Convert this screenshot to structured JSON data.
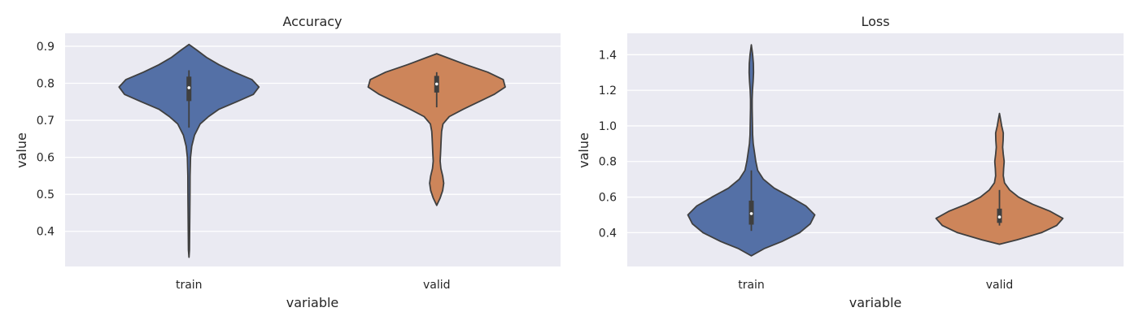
{
  "colors": {
    "background": "#eaeaf2",
    "grid": "#ffffff",
    "outline": "#3f3f3f",
    "train": "#5470a6",
    "valid": "#cd855a"
  },
  "chart_data": [
    {
      "type": "violin",
      "title": "Accuracy",
      "xlabel": "variable",
      "ylabel": "value",
      "ylim": [
        0.305,
        0.935
      ],
      "yticks": [
        "0.4",
        "0.5",
        "0.6",
        "0.7",
        "0.8",
        "0.9"
      ],
      "ytick_values": [
        0.4,
        0.5,
        0.6,
        0.7,
        0.8,
        0.9
      ],
      "grid": true,
      "categories": [
        "train",
        "valid"
      ],
      "violins": [
        {
          "category": "train",
          "color_key": "train",
          "density_y": [
            0.33,
            0.35,
            0.4,
            0.45,
            0.5,
            0.55,
            0.6,
            0.63,
            0.66,
            0.69,
            0.71,
            0.73,
            0.75,
            0.77,
            0.79,
            0.81,
            0.83,
            0.85,
            0.87,
            0.89,
            0.905
          ],
          "density_w": [
            0.0,
            0.008,
            0.01,
            0.012,
            0.014,
            0.016,
            0.023,
            0.04,
            0.08,
            0.16,
            0.28,
            0.43,
            0.68,
            0.92,
            1.0,
            0.9,
            0.65,
            0.43,
            0.25,
            0.11,
            0.0
          ],
          "whisker": [
            0.68,
            0.835
          ],
          "quartiles": [
            0.752,
            0.818
          ],
          "median": 0.788
        },
        {
          "category": "valid",
          "color_key": "valid",
          "density_y": [
            0.47,
            0.49,
            0.51,
            0.53,
            0.55,
            0.57,
            0.59,
            0.61,
            0.63,
            0.65,
            0.67,
            0.69,
            0.71,
            0.73,
            0.75,
            0.77,
            0.79,
            0.81,
            0.83,
            0.85,
            0.87,
            0.88
          ],
          "density_w": [
            0.0,
            0.05,
            0.085,
            0.1,
            0.085,
            0.06,
            0.05,
            0.055,
            0.06,
            0.065,
            0.07,
            0.09,
            0.18,
            0.38,
            0.6,
            0.82,
            0.98,
            0.95,
            0.73,
            0.42,
            0.14,
            0.0
          ],
          "whisker": [
            0.735,
            0.83
          ],
          "quartiles": [
            0.775,
            0.82
          ],
          "median": 0.798
        }
      ]
    },
    {
      "type": "violin",
      "title": "Loss",
      "xlabel": "variable",
      "ylabel": "value",
      "ylim": [
        0.21,
        1.52
      ],
      "yticks": [
        "0.4",
        "0.6",
        "0.8",
        "1.0",
        "1.2",
        "1.4"
      ],
      "ytick_values": [
        0.4,
        0.6,
        0.8,
        1.0,
        1.2,
        1.4
      ],
      "grid": true,
      "categories": [
        "train",
        "valid"
      ],
      "violins": [
        {
          "category": "train",
          "color_key": "train",
          "density_y": [
            0.27,
            0.31,
            0.35,
            0.4,
            0.45,
            0.5,
            0.55,
            0.6,
            0.65,
            0.7,
            0.75,
            0.8,
            0.85,
            0.9,
            0.95,
            1.0,
            1.05,
            1.1,
            1.15,
            1.2,
            1.25,
            1.3,
            1.35,
            1.4,
            1.455
          ],
          "density_w": [
            0.0,
            0.2,
            0.48,
            0.76,
            0.93,
            1.0,
            0.86,
            0.62,
            0.36,
            0.19,
            0.1,
            0.07,
            0.05,
            0.03,
            0.02,
            0.018,
            0.015,
            0.013,
            0.013,
            0.018,
            0.028,
            0.035,
            0.032,
            0.02,
            0.0
          ],
          "whisker": [
            0.41,
            0.75
          ],
          "quartiles": [
            0.445,
            0.58
          ],
          "median": 0.507
        },
        {
          "category": "valid",
          "color_key": "valid",
          "density_y": [
            0.335,
            0.36,
            0.4,
            0.44,
            0.48,
            0.52,
            0.56,
            0.6,
            0.64,
            0.68,
            0.72,
            0.76,
            0.8,
            0.84,
            0.88,
            0.92,
            0.96,
            1.0,
            1.04,
            1.07
          ],
          "density_w": [
            0.0,
            0.28,
            0.66,
            0.9,
            1.0,
            0.8,
            0.52,
            0.3,
            0.16,
            0.08,
            0.06,
            0.065,
            0.075,
            0.06,
            0.05,
            0.058,
            0.06,
            0.035,
            0.015,
            0.0
          ],
          "whisker": [
            0.44,
            0.64
          ],
          "quartiles": [
            0.455,
            0.535
          ],
          "median": 0.488
        }
      ]
    }
  ]
}
